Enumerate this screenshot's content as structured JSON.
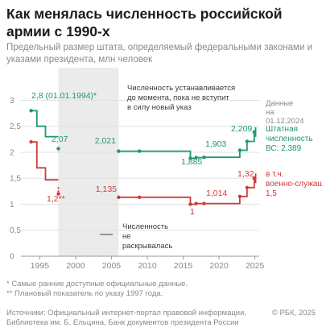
{
  "title": "Как менялась численность российской армии с 1990-х",
  "subtitle": "Предельный размер штата, определяемый федеральными законами и указами президента, млн человек",
  "colors": {
    "staff": "#1e9a6c",
    "military": "#d23a3a",
    "shade": "#ebebeb",
    "axis": "#c8c8c8",
    "muted": "#8a8a8a"
  },
  "chart_data": {
    "type": "line",
    "x_axis": {
      "min": 1993.5,
      "max": 2025.6,
      "ticks": [
        1995,
        2000,
        2005,
        2010,
        2015,
        2020,
        2025
      ]
    },
    "y_axis": {
      "min": 0,
      "max": 3.1,
      "ticks": [
        0,
        0.5,
        1,
        1.5,
        2,
        2.5,
        3
      ],
      "tick_labels": [
        "0",
        "0,5",
        "1",
        "1,5",
        "2",
        "2,5",
        "3"
      ]
    },
    "shaded_period": {
      "from": 1997.6,
      "to": 2006.0
    },
    "series": [
      {
        "key": "staff",
        "name": "Штатная численность ВС: 2,389",
        "step": [
          [
            1993.8,
            2.8
          ],
          [
            1994.6,
            2.8
          ],
          [
            1994.6,
            2.5
          ],
          [
            1995.8,
            2.5
          ],
          [
            1995.8,
            2.3
          ],
          [
            1997.6,
            2.3
          ]
        ],
        "dashed": [
          [
            1997.6,
            2.07
          ],
          [
            1997.6,
            2.0
          ]
        ],
        "step2": [
          [
            2006.0,
            2.021
          ],
          [
            2016.0,
            2.021
          ],
          [
            2016.0,
            1.885
          ],
          [
            2016.8,
            1.885
          ],
          [
            2016.8,
            1.897
          ],
          [
            2017.9,
            1.897
          ],
          [
            2017.9,
            1.903
          ],
          [
            2022.9,
            1.903
          ],
          [
            2022.9,
            2.039
          ],
          [
            2023.9,
            2.039
          ],
          [
            2023.9,
            2.209
          ],
          [
            2024.9,
            2.209
          ],
          [
            2024.9,
            2.389
          ],
          [
            2025.1,
            2.389
          ]
        ],
        "points": [
          [
            1993.8,
            2.8
          ],
          [
            1997.6,
            2.07
          ],
          [
            2006.0,
            2.021
          ],
          [
            2008.9,
            2.021
          ],
          [
            2016.0,
            1.885
          ],
          [
            2016.8,
            1.897
          ],
          [
            2017.9,
            1.903
          ],
          [
            2022.9,
            2.039
          ],
          [
            2023.9,
            2.209
          ],
          [
            2024.9,
            2.389
          ]
        ]
      },
      {
        "key": "military",
        "name": "в т.ч. военно-служащих: 1,5",
        "step": [
          [
            1993.8,
            2.2
          ],
          [
            1994.6,
            2.2
          ],
          [
            1994.6,
            1.7
          ],
          [
            1995.8,
            1.7
          ],
          [
            1995.8,
            1.469
          ],
          [
            1997.6,
            1.469
          ]
        ],
        "dashed": [
          [
            1997.6,
            1.33
          ],
          [
            1997.6,
            1.2
          ]
        ],
        "step2": [
          [
            2006.0,
            1.135
          ],
          [
            2016.0,
            1.135
          ],
          [
            2016.0,
            1.0
          ],
          [
            2016.8,
            1.0
          ],
          [
            2016.8,
            1.013
          ],
          [
            2017.9,
            1.013
          ],
          [
            2017.9,
            1.014
          ],
          [
            2022.9,
            1.014
          ],
          [
            2022.9,
            1.15
          ],
          [
            2023.9,
            1.15
          ],
          [
            2023.9,
            1.32
          ],
          [
            2024.9,
            1.32
          ],
          [
            2024.9,
            1.5
          ],
          [
            2025.1,
            1.5
          ]
        ],
        "points": [
          [
            1993.8,
            2.2
          ],
          [
            1997.6,
            1.2
          ],
          [
            2006.0,
            1.135
          ],
          [
            2008.9,
            1.135
          ],
          [
            2016.0,
            1.0
          ],
          [
            2016.8,
            1.013
          ],
          [
            2017.9,
            1.014
          ],
          [
            2022.9,
            1.15
          ],
          [
            2023.9,
            1.32
          ],
          [
            2024.9,
            1.5
          ]
        ]
      }
    ],
    "value_labels": [
      {
        "series": "staff",
        "text": "2,8 (01.01.1994)*"
      },
      {
        "series": "staff",
        "text": "2,07"
      },
      {
        "series": "staff",
        "text": "2,021"
      },
      {
        "series": "staff",
        "text": "1,885"
      },
      {
        "series": "staff",
        "text": "1,903"
      },
      {
        "series": "staff",
        "text": "2,209"
      },
      {
        "series": "military",
        "text": "1,2**"
      },
      {
        "series": "military",
        "text": "1,135"
      },
      {
        "series": "military",
        "text": "1"
      },
      {
        "series": "military",
        "text": "1,014"
      },
      {
        "series": "military",
        "text": "1,32"
      }
    ],
    "annotations": {
      "pending": "Численность устанавливается до момента, пока не вступит в силу новый указ",
      "data_date": "Данные на 01.12.2024",
      "staff_legend": "Штатная численность ВС: 2,389",
      "military_legend": "в т.ч. военно-служащих: 1,5",
      "undisclosed": "Численность не раскрывалась"
    }
  },
  "footnotes": {
    "star": "* Самые ранние доступные официальные данные.",
    "double_star": "** Плановый показатель по указу 1997 года."
  },
  "sources": "Источники: Официальный интернет-портал правовой информации, Библиотека им. Б. Ельцина, Банк документов президента России",
  "copyright": "© РБК, 2025"
}
